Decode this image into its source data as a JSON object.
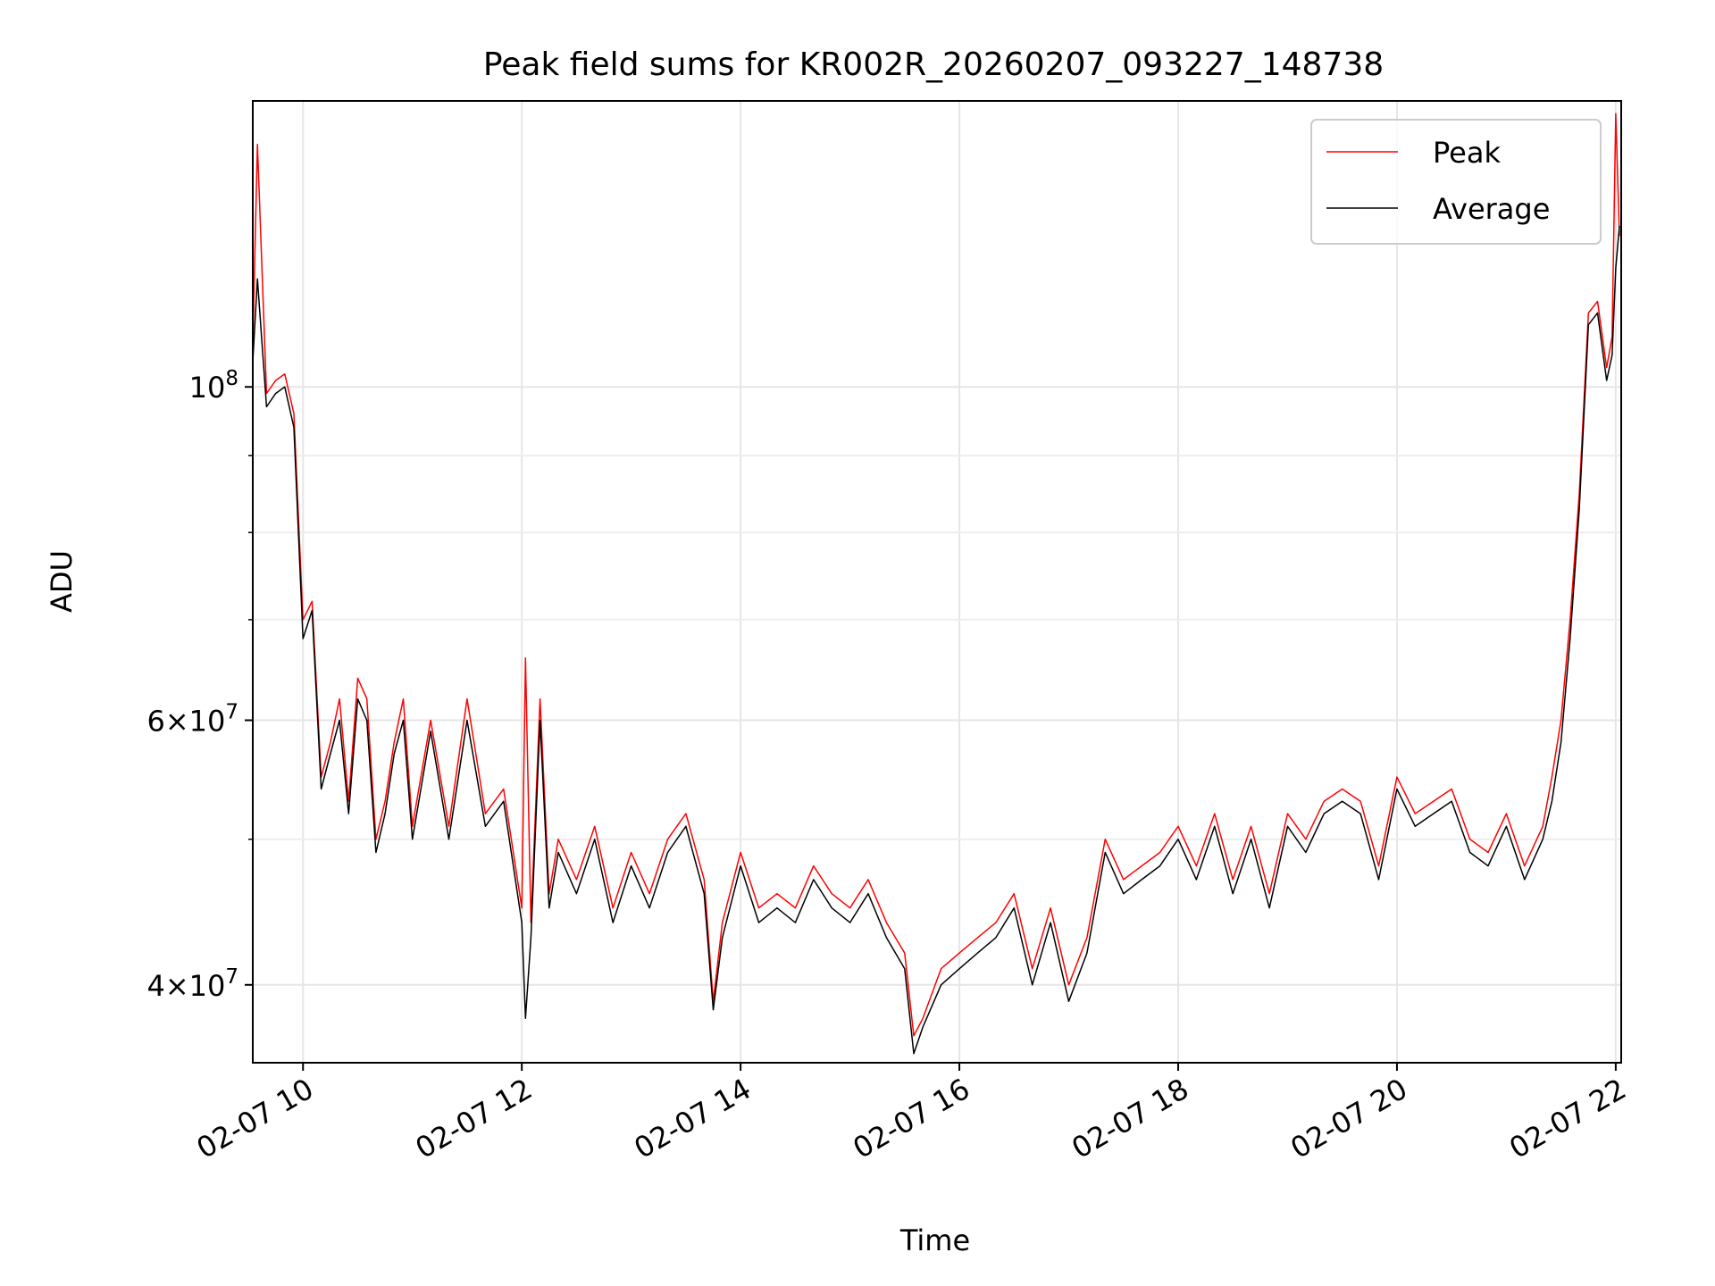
{
  "chart_data": {
    "type": "line",
    "title": "Peak field sums for KR002R_20260207_093227_148738",
    "xlabel": "Time",
    "ylabel": "ADU",
    "yscale": "log",
    "grid": true,
    "legend_position": "top-right",
    "xlim": [
      "2026-02-07T09:32:27",
      "2026-02-07T22:03:00"
    ],
    "ylim": [
      35500000,
      155000000
    ],
    "x_ticks": [
      {
        "value": "2026-02-07T10:00",
        "label": "02-07 10"
      },
      {
        "value": "2026-02-07T12:00",
        "label": "02-07 12"
      },
      {
        "value": "2026-02-07T14:00",
        "label": "02-07 14"
      },
      {
        "value": "2026-02-07T16:00",
        "label": "02-07 16"
      },
      {
        "value": "2026-02-07T18:00",
        "label": "02-07 18"
      },
      {
        "value": "2026-02-07T20:00",
        "label": "02-07 20"
      },
      {
        "value": "2026-02-07T22:00",
        "label": "02-07 22"
      }
    ],
    "y_major_ticks": [
      {
        "value": 100000000,
        "base": "10",
        "exp": "8",
        "mant": ""
      },
      {
        "value": 60000000,
        "base": "10",
        "exp": "7",
        "mant": "6"
      },
      {
        "value": 40000000,
        "base": "10",
        "exp": "7",
        "mant": "4"
      }
    ],
    "y_minor_ticks": [
      50000000,
      70000000,
      80000000,
      90000000
    ],
    "times_suffix": "×",
    "series": [
      {
        "name": "Peak",
        "color": "#ff0000",
        "x": [
          "2026-02-07T09:32",
          "2026-02-07T09:35",
          "2026-02-07T09:40",
          "2026-02-07T09:45",
          "2026-02-07T09:50",
          "2026-02-07T09:55",
          "2026-02-07T10:00",
          "2026-02-07T10:05",
          "2026-02-07T10:10",
          "2026-02-07T10:15",
          "2026-02-07T10:20",
          "2026-02-07T10:25",
          "2026-02-07T10:30",
          "2026-02-07T10:35",
          "2026-02-07T10:40",
          "2026-02-07T10:45",
          "2026-02-07T10:50",
          "2026-02-07T10:55",
          "2026-02-07T11:00",
          "2026-02-07T11:10",
          "2026-02-07T11:20",
          "2026-02-07T11:30",
          "2026-02-07T11:40",
          "2026-02-07T11:50",
          "2026-02-07T12:00",
          "2026-02-07T12:02",
          "2026-02-07T12:05",
          "2026-02-07T12:10",
          "2026-02-07T12:15",
          "2026-02-07T12:20",
          "2026-02-07T12:30",
          "2026-02-07T12:40",
          "2026-02-07T12:50",
          "2026-02-07T13:00",
          "2026-02-07T13:10",
          "2026-02-07T13:20",
          "2026-02-07T13:30",
          "2026-02-07T13:40",
          "2026-02-07T13:45",
          "2026-02-07T13:50",
          "2026-02-07T14:00",
          "2026-02-07T14:10",
          "2026-02-07T14:20",
          "2026-02-07T14:30",
          "2026-02-07T14:40",
          "2026-02-07T14:50",
          "2026-02-07T15:00",
          "2026-02-07T15:10",
          "2026-02-07T15:20",
          "2026-02-07T15:30",
          "2026-02-07T15:35",
          "2026-02-07T15:40",
          "2026-02-07T15:50",
          "2026-02-07T16:00",
          "2026-02-07T16:10",
          "2026-02-07T16:20",
          "2026-02-07T16:30",
          "2026-02-07T16:40",
          "2026-02-07T16:50",
          "2026-02-07T17:00",
          "2026-02-07T17:10",
          "2026-02-07T17:20",
          "2026-02-07T17:30",
          "2026-02-07T17:40",
          "2026-02-07T17:50",
          "2026-02-07T18:00",
          "2026-02-07T18:10",
          "2026-02-07T18:20",
          "2026-02-07T18:30",
          "2026-02-07T18:40",
          "2026-02-07T18:50",
          "2026-02-07T19:00",
          "2026-02-07T19:10",
          "2026-02-07T19:20",
          "2026-02-07T19:30",
          "2026-02-07T19:40",
          "2026-02-07T19:50",
          "2026-02-07T20:00",
          "2026-02-07T20:10",
          "2026-02-07T20:20",
          "2026-02-07T20:30",
          "2026-02-07T20:40",
          "2026-02-07T20:50",
          "2026-02-07T21:00",
          "2026-02-07T21:10",
          "2026-02-07T21:20",
          "2026-02-07T21:25",
          "2026-02-07T21:30",
          "2026-02-07T21:35",
          "2026-02-07T21:40",
          "2026-02-07T21:45",
          "2026-02-07T21:50",
          "2026-02-07T21:55",
          "2026-02-07T21:58",
          "2026-02-07T22:00",
          "2026-02-07T22:02"
        ],
        "values": [
          107000000,
          145000000,
          99000000,
          101000000,
          102000000,
          96000000,
          70000000,
          72000000,
          55000000,
          58000000,
          62000000,
          53000000,
          64000000,
          62000000,
          50000000,
          53000000,
          58000000,
          62000000,
          51000000,
          60000000,
          51000000,
          62000000,
          52000000,
          54000000,
          45000000,
          66000000,
          44000000,
          62000000,
          46000000,
          50000000,
          47000000,
          51000000,
          45000000,
          49000000,
          46000000,
          50000000,
          52000000,
          47000000,
          39000000,
          44000000,
          49000000,
          45000000,
          46000000,
          45000000,
          48000000,
          46000000,
          45000000,
          47000000,
          44000000,
          42000000,
          37000000,
          38000000,
          41000000,
          42000000,
          43000000,
          44000000,
          46000000,
          41000000,
          45000000,
          40000000,
          43000000,
          50000000,
          47000000,
          48000000,
          49000000,
          51000000,
          48000000,
          52000000,
          47000000,
          51000000,
          46000000,
          52000000,
          50000000,
          53000000,
          54000000,
          53000000,
          48000000,
          55000000,
          52000000,
          53000000,
          54000000,
          50000000,
          49000000,
          52000000,
          48000000,
          51000000,
          55000000,
          60000000,
          70000000,
          85000000,
          112000000,
          114000000,
          103000000,
          108000000,
          152000000,
          126000000
        ]
      },
      {
        "name": "Average",
        "color": "#000000",
        "x": [
          "2026-02-07T09:32",
          "2026-02-07T09:35",
          "2026-02-07T09:40",
          "2026-02-07T09:45",
          "2026-02-07T09:50",
          "2026-02-07T09:55",
          "2026-02-07T10:00",
          "2026-02-07T10:05",
          "2026-02-07T10:10",
          "2026-02-07T10:15",
          "2026-02-07T10:20",
          "2026-02-07T10:25",
          "2026-02-07T10:30",
          "2026-02-07T10:35",
          "2026-02-07T10:40",
          "2026-02-07T10:45",
          "2026-02-07T10:50",
          "2026-02-07T10:55",
          "2026-02-07T11:00",
          "2026-02-07T11:10",
          "2026-02-07T11:20",
          "2026-02-07T11:30",
          "2026-02-07T11:40",
          "2026-02-07T11:50",
          "2026-02-07T12:00",
          "2026-02-07T12:02",
          "2026-02-07T12:05",
          "2026-02-07T12:10",
          "2026-02-07T12:15",
          "2026-02-07T12:20",
          "2026-02-07T12:30",
          "2026-02-07T12:40",
          "2026-02-07T12:50",
          "2026-02-07T13:00",
          "2026-02-07T13:10",
          "2026-02-07T13:20",
          "2026-02-07T13:30",
          "2026-02-07T13:40",
          "2026-02-07T13:45",
          "2026-02-07T13:50",
          "2026-02-07T14:00",
          "2026-02-07T14:10",
          "2026-02-07T14:20",
          "2026-02-07T14:30",
          "2026-02-07T14:40",
          "2026-02-07T14:50",
          "2026-02-07T15:00",
          "2026-02-07T15:10",
          "2026-02-07T15:20",
          "2026-02-07T15:30",
          "2026-02-07T15:35",
          "2026-02-07T15:40",
          "2026-02-07T15:50",
          "2026-02-07T16:00",
          "2026-02-07T16:10",
          "2026-02-07T16:20",
          "2026-02-07T16:30",
          "2026-02-07T16:40",
          "2026-02-07T16:50",
          "2026-02-07T17:00",
          "2026-02-07T17:10",
          "2026-02-07T17:20",
          "2026-02-07T17:30",
          "2026-02-07T17:40",
          "2026-02-07T17:50",
          "2026-02-07T18:00",
          "2026-02-07T18:10",
          "2026-02-07T18:20",
          "2026-02-07T18:30",
          "2026-02-07T18:40",
          "2026-02-07T18:50",
          "2026-02-07T19:00",
          "2026-02-07T19:10",
          "2026-02-07T19:20",
          "2026-02-07T19:30",
          "2026-02-07T19:40",
          "2026-02-07T19:50",
          "2026-02-07T20:00",
          "2026-02-07T20:10",
          "2026-02-07T20:20",
          "2026-02-07T20:30",
          "2026-02-07T20:40",
          "2026-02-07T20:50",
          "2026-02-07T21:00",
          "2026-02-07T21:10",
          "2026-02-07T21:20",
          "2026-02-07T21:25",
          "2026-02-07T21:30",
          "2026-02-07T21:35",
          "2026-02-07T21:40",
          "2026-02-07T21:45",
          "2026-02-07T21:50",
          "2026-02-07T21:55",
          "2026-02-07T21:58",
          "2026-02-07T22:00",
          "2026-02-07T22:02"
        ],
        "values": [
          104000000,
          118000000,
          97000000,
          99000000,
          100000000,
          94000000,
          68000000,
          71000000,
          54000000,
          57000000,
          60000000,
          52000000,
          62000000,
          60000000,
          49000000,
          52000000,
          57000000,
          60000000,
          50000000,
          59000000,
          50000000,
          60000000,
          51000000,
          53000000,
          44000000,
          38000000,
          43000000,
          60000000,
          45000000,
          49000000,
          46000000,
          50000000,
          44000000,
          48000000,
          45000000,
          49000000,
          51000000,
          46000000,
          38500000,
          43000000,
          48000000,
          44000000,
          45000000,
          44000000,
          47000000,
          45000000,
          44000000,
          46000000,
          43000000,
          41000000,
          36000000,
          37500000,
          40000000,
          41000000,
          42000000,
          43000000,
          45000000,
          40000000,
          44000000,
          39000000,
          42000000,
          49000000,
          46000000,
          47000000,
          48000000,
          50000000,
          47000000,
          51000000,
          46000000,
          50000000,
          45000000,
          51000000,
          49000000,
          52000000,
          53000000,
          52000000,
          47000000,
          54000000,
          51000000,
          52000000,
          53000000,
          49000000,
          48000000,
          51000000,
          47000000,
          50000000,
          53000000,
          58000000,
          68000000,
          83000000,
          110000000,
          112000000,
          101000000,
          105000000,
          120000000,
          128000000
        ]
      }
    ]
  }
}
